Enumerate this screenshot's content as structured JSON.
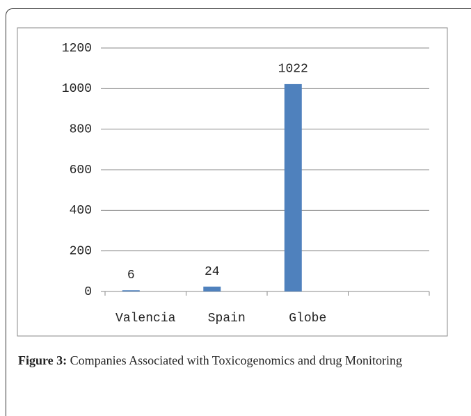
{
  "chart_data": {
    "type": "bar",
    "categories": [
      "Valencia",
      "Spain",
      "Globe",
      null
    ],
    "values": [
      6,
      24,
      1022,
      null
    ],
    "color": "#4f81bd",
    "ylim": [
      0,
      1200
    ],
    "yticks": [
      0,
      200,
      400,
      600,
      800,
      1000,
      1200
    ],
    "grid": true
  },
  "caption": {
    "label": "Figure 3:",
    "text": "Companies Associated with Toxicogenomics and drug Monitoring"
  }
}
